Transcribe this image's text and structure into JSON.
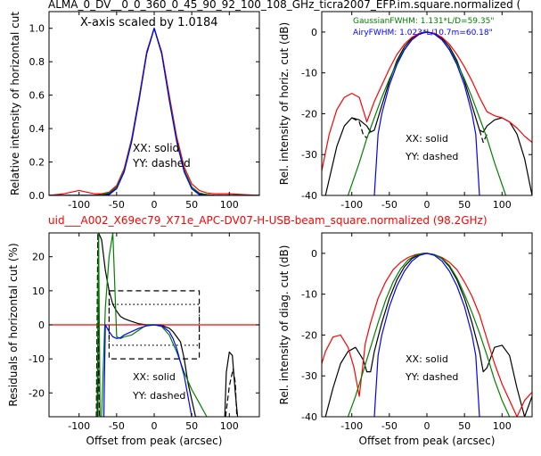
{
  "figure": {
    "top_title": "ALMA_0_DV__0_0_360_0_45_90_92_100_108_GHz_ticra2007_EFP.im.square.normalized (",
    "middle_title": "uid___A002_X69ec79_X71e_APC-DV07-H-USB-beam_square.normalized (98.2GHz)",
    "colors": {
      "black": "#000000",
      "red": "#ff0000",
      "green": "#008000",
      "blue": "#0000ff"
    }
  },
  "chart_data": [
    {
      "type": "line",
      "panel": "top-left",
      "ylabel": "Relative intensity of horizontal cut",
      "xlabel": "",
      "xlim": [
        -140,
        140
      ],
      "ylim": [
        0,
        1.1
      ],
      "xticks": [
        -100,
        -50,
        0,
        50,
        100
      ],
      "yticks": [
        0.0,
        0.2,
        0.4,
        0.6,
        0.8,
        1.0
      ],
      "annotation": "X-axis scaled by 1.0184",
      "legend": [
        "XX: solid",
        "YY: dashed"
      ],
      "series": [
        {
          "color": "#000000",
          "style": "solid",
          "x": [
            -140,
            -100,
            -80,
            -60,
            -50,
            -40,
            -30,
            -20,
            -10,
            0,
            10,
            20,
            30,
            40,
            50,
            60,
            80,
            100,
            140
          ],
          "y": [
            0,
            0,
            0,
            0.01,
            0.05,
            0.15,
            0.33,
            0.58,
            0.85,
            1.0,
            0.85,
            0.58,
            0.33,
            0.15,
            0.05,
            0.01,
            0,
            0,
            0
          ]
        },
        {
          "color": "#000000",
          "style": "dashed",
          "x": [
            -140,
            -100,
            -80,
            -60,
            -50,
            -40,
            -30,
            -20,
            -10,
            0,
            10,
            20,
            30,
            40,
            50,
            60,
            80,
            100,
            140
          ],
          "y": [
            0,
            0,
            0,
            0.01,
            0.05,
            0.15,
            0.33,
            0.58,
            0.85,
            1.0,
            0.85,
            0.58,
            0.33,
            0.15,
            0.05,
            0.01,
            0,
            0,
            0
          ]
        },
        {
          "color": "#ff0000",
          "style": "solid",
          "x": [
            -140,
            -120,
            -100,
            -90,
            -80,
            -70,
            -60,
            -50,
            -40,
            -30,
            -20,
            -10,
            0,
            10,
            20,
            30,
            40,
            50,
            60,
            70,
            80,
            100,
            120,
            140
          ],
          "y": [
            0,
            0.01,
            0.03,
            0.02,
            0.01,
            0.01,
            0.02,
            0.06,
            0.16,
            0.34,
            0.59,
            0.86,
            1.0,
            0.86,
            0.6,
            0.35,
            0.17,
            0.07,
            0.03,
            0.015,
            0.01,
            0.01,
            0.005,
            0
          ]
        },
        {
          "color": "#008000",
          "style": "solid",
          "x": [
            -140,
            -100,
            -80,
            -70,
            -60,
            -50,
            -40,
            -30,
            -20,
            -10,
            0,
            10,
            20,
            30,
            40,
            50,
            60,
            70,
            80,
            100,
            140
          ],
          "y": [
            0,
            0,
            0,
            0.005,
            0.015,
            0.05,
            0.15,
            0.33,
            0.58,
            0.85,
            1.0,
            0.85,
            0.58,
            0.33,
            0.15,
            0.05,
            0.015,
            0.005,
            0,
            0,
            0
          ]
        },
        {
          "color": "#0000ff",
          "style": "solid",
          "x": [
            -140,
            -100,
            -70,
            -60,
            -50,
            -40,
            -30,
            -20,
            -10,
            0,
            10,
            20,
            30,
            40,
            50,
            60,
            70,
            100,
            140
          ],
          "y": [
            0,
            0,
            0,
            0.005,
            0.04,
            0.14,
            0.32,
            0.57,
            0.85,
            1.0,
            0.85,
            0.57,
            0.32,
            0.14,
            0.04,
            0.005,
            0,
            0,
            0
          ]
        }
      ]
    },
    {
      "type": "line",
      "panel": "top-right",
      "ylabel": "Rel. intensity of horiz. cut (dB)",
      "xlabel": "",
      "xlim": [
        -140,
        140
      ],
      "ylim": [
        -40,
        5
      ],
      "xticks": [
        -100,
        -50,
        0,
        50,
        100
      ],
      "yticks": [
        0,
        -10,
        -20,
        -30,
        -40
      ],
      "annotations": [
        "GaussianFWHM: 1.131*L/D=59.35\"",
        "AiryFWHM: 1.023*L/10.7m=60.18\""
      ],
      "legend": [
        "XX: solid",
        "YY: dashed"
      ],
      "series": [
        {
          "color": "#000000",
          "style": "solid",
          "x": [
            -135,
            -120,
            -110,
            -100,
            -90,
            -80,
            -75,
            -70,
            -60,
            -50,
            -40,
            -30,
            -20,
            -10,
            0,
            10,
            20,
            30,
            40,
            50,
            60,
            70,
            75,
            80,
            90,
            100,
            110,
            120,
            130,
            140
          ],
          "y": [
            -40,
            -28,
            -23,
            -21,
            -21.5,
            -23,
            -24.5,
            -24,
            -18,
            -12,
            -7,
            -3.6,
            -1.5,
            -0.3,
            0,
            -0.3,
            -1.5,
            -3.6,
            -7,
            -12,
            -18,
            -24,
            -24.5,
            -23,
            -21.5,
            -21,
            -22,
            -25,
            -31,
            -40
          ]
        },
        {
          "color": "#000000",
          "style": "dashed",
          "x": [
            -100,
            -90,
            -85,
            -80,
            -75
          ],
          "y": [
            -21,
            -22,
            -25,
            -26,
            -24
          ]
        },
        {
          "color": "#000000",
          "style": "dashed",
          "x": [
            70,
            75,
            80
          ],
          "y": [
            -24,
            -27,
            -25
          ]
        },
        {
          "color": "#ff0000",
          "style": "solid",
          "x": [
            -140,
            -130,
            -120,
            -110,
            -100,
            -90,
            -80,
            -70,
            -60,
            -50,
            -40,
            -30,
            -20,
            -10,
            0,
            10,
            20,
            30,
            40,
            50,
            60,
            70,
            80,
            90,
            100,
            110,
            120,
            130,
            140
          ],
          "y": [
            -34,
            -25,
            -19,
            -16,
            -15,
            -16,
            -22,
            -17,
            -13,
            -9,
            -5.5,
            -3,
            -1.3,
            -0.3,
            0,
            -0.3,
            -1.3,
            -3,
            -5.5,
            -8.5,
            -12,
            -16,
            -19.5,
            -20.5,
            -21,
            -22,
            -23.5,
            -25.5,
            -27
          ]
        },
        {
          "color": "#008000",
          "style": "solid",
          "x": [
            -105,
            -90,
            -80,
            -70,
            -60,
            -50,
            -40,
            -30,
            -20,
            -10,
            0,
            10,
            20,
            30,
            40,
            50,
            60,
            70,
            80,
            90,
            105
          ],
          "y": [
            -40,
            -32,
            -26,
            -21,
            -16,
            -11.5,
            -7.5,
            -4.2,
            -1.9,
            -0.5,
            0,
            -0.5,
            -1.9,
            -4.2,
            -7.5,
            -11.5,
            -16,
            -21,
            -26,
            -32,
            -40
          ]
        },
        {
          "color": "#0000ff",
          "style": "solid",
          "x": [
            -70,
            -65,
            -60,
            -50,
            -40,
            -30,
            -20,
            -10,
            0,
            10,
            20,
            30,
            40,
            50,
            60,
            65,
            70
          ],
          "y": [
            -40,
            -25,
            -20,
            -13,
            -8,
            -4.4,
            -1.9,
            -0.5,
            0,
            -0.5,
            -1.9,
            -4.4,
            -8,
            -13,
            -20,
            -25,
            -40
          ]
        }
      ]
    },
    {
      "type": "line",
      "panel": "bottom-left",
      "ylabel": "Residuals of horizontal cut (%)",
      "xlabel": "Offset from peak (arcsec)",
      "xlim": [
        -140,
        140
      ],
      "ylim": [
        -27,
        27
      ],
      "xticks": [
        -100,
        -50,
        0,
        50,
        100
      ],
      "yticks": [
        20,
        10,
        0,
        -10,
        -20
      ],
      "legend": [
        "XX: solid",
        "YY: dashed"
      ],
      "series": [
        {
          "color": "#000000",
          "style": "solid",
          "x": [
            -75,
            -74,
            -70,
            -65,
            -60,
            -55,
            -50,
            -45,
            -40,
            -35,
            -30,
            -20,
            -10,
            0,
            10,
            15,
            20,
            25,
            30,
            35,
            40,
            45,
            50,
            55,
            60
          ],
          "y": [
            -27,
            27,
            25,
            16,
            10,
            6,
            4,
            2.5,
            1.8,
            1.4,
            1,
            0.3,
            0,
            0,
            0,
            -0.6,
            -1,
            -2,
            -3.5,
            -5,
            -10,
            -17,
            -22,
            -27,
            -27
          ]
        },
        {
          "color": "#000000",
          "style": "solid",
          "x": [
            94,
            96,
            100,
            104,
            108,
            111
          ],
          "y": [
            -27,
            -14,
            -8,
            -9,
            -20,
            -27
          ]
        },
        {
          "color": "#000000",
          "style": "dashed",
          "x": [
            -77,
            -75,
            -73
          ],
          "y": [
            -27,
            27,
            -27
          ]
        },
        {
          "color": "#000000",
          "style": "dashed",
          "x": [
            95,
            100,
            105,
            108,
            110
          ],
          "y": [
            -27,
            -18,
            -13,
            -17,
            -27
          ]
        },
        {
          "color": "#ff0000",
          "style": "solid",
          "x": [
            -140,
            140
          ],
          "y": [
            0,
            0
          ]
        },
        {
          "color": "#008000",
          "style": "solid",
          "x": [
            -76,
            -74,
            -72,
            -70,
            -65,
            -60,
            -55,
            -50,
            -45,
            -40,
            -30,
            -20,
            -10,
            0,
            10,
            20,
            30,
            40,
            50,
            60,
            70
          ],
          "y": [
            -27,
            27,
            -27,
            -27,
            5,
            20,
            27,
            -3.5,
            -4,
            -3.5,
            -3,
            -1.5,
            0,
            0,
            -0.5,
            -3,
            -8,
            -14,
            -19,
            -23,
            -27
          ]
        },
        {
          "color": "#0000ff",
          "style": "solid",
          "x": [
            -67,
            -65,
            -60,
            -55,
            -50,
            -45,
            -40,
            -30,
            -20,
            -10,
            0,
            10,
            20,
            25,
            30,
            35,
            40,
            45,
            50
          ],
          "y": [
            -27,
            0,
            -2,
            -3.5,
            -4,
            -3.8,
            -3,
            -2,
            -1,
            -0.3,
            0,
            -0.3,
            -2,
            -4,
            -7,
            -11,
            -15,
            -21,
            -27
          ]
        }
      ],
      "dashed_box_x": [
        -60,
        60
      ],
      "dashed_box_y": [
        -10,
        10
      ],
      "dotted_box_x": [
        -60,
        60
      ],
      "dotted_box_y": [
        -6,
        6
      ]
    },
    {
      "type": "line",
      "panel": "bottom-right",
      "ylabel": "Rel. intensity of diag. cut (dB)",
      "xlabel": "Offset from peak (arcsec)",
      "xlim": [
        -140,
        140
      ],
      "ylim": [
        -40,
        5
      ],
      "xticks": [
        -100,
        -50,
        0,
        50,
        100
      ],
      "yticks": [
        0,
        -10,
        -20,
        -30,
        -40
      ],
      "legend": [
        "XX: solid",
        "YY: dashed"
      ],
      "series": [
        {
          "color": "#000000",
          "style": "solid",
          "x": [
            -135,
            -125,
            -115,
            -105,
            -95,
            -85,
            -80,
            -75,
            -70,
            -60,
            -50,
            -40,
            -30,
            -20,
            -10,
            0,
            10,
            20,
            30,
            40,
            50,
            60,
            70,
            75,
            80,
            90,
            100,
            110,
            120,
            130,
            140
          ],
          "y": [
            -40,
            -33,
            -27,
            -24,
            -23,
            -26,
            -29,
            -29,
            -24,
            -17,
            -11,
            -6.5,
            -3.3,
            -1.3,
            -0.3,
            0,
            -0.3,
            -1.3,
            -3.3,
            -6.5,
            -11,
            -17,
            -24,
            -29,
            -28,
            -23,
            -22.5,
            -25,
            -33,
            -40,
            -35
          ]
        },
        {
          "color": "#ff0000",
          "style": "solid",
          "x": [
            -140,
            -135,
            -125,
            -115,
            -105,
            -97,
            -90,
            -82,
            -75,
            -65,
            -55,
            -45,
            -35,
            -25,
            -15,
            -5,
            0,
            10,
            20,
            30,
            40,
            50,
            60,
            70,
            80,
            90,
            100,
            110,
            120,
            130,
            140
          ],
          "y": [
            -27,
            -24,
            -20.5,
            -20,
            -23,
            -28,
            -35,
            -22,
            -17,
            -11,
            -7,
            -4,
            -2.2,
            -1,
            -0.3,
            0,
            0,
            -0.3,
            -1,
            -2.2,
            -4,
            -7,
            -10.5,
            -15,
            -21,
            -27,
            -32,
            -36,
            -40,
            -36,
            -34
          ]
        },
        {
          "color": "#008000",
          "style": "solid",
          "x": [
            -105,
            -95,
            -85,
            -75,
            -65,
            -55,
            -45,
            -35,
            -25,
            -15,
            -5,
            0,
            10,
            20,
            30,
            40,
            50,
            60,
            70,
            80,
            90,
            100,
            110
          ],
          "y": [
            -40,
            -35,
            -29,
            -23,
            -17,
            -11.5,
            -7,
            -3.8,
            -1.6,
            -0.5,
            0,
            0,
            -0.3,
            -1.2,
            -3,
            -6,
            -10,
            -14.5,
            -19.5,
            -25,
            -31,
            -36,
            -40
          ]
        },
        {
          "color": "#0000ff",
          "style": "solid",
          "x": [
            -70,
            -65,
            -60,
            -50,
            -40,
            -30,
            -20,
            -10,
            0,
            10,
            20,
            30,
            40,
            50,
            60,
            65,
            70
          ],
          "y": [
            -40,
            -25,
            -20,
            -13,
            -8,
            -4.4,
            -1.9,
            -0.5,
            0,
            -0.5,
            -1.9,
            -4.4,
            -8,
            -13,
            -20,
            -25,
            -40
          ]
        }
      ]
    }
  ]
}
